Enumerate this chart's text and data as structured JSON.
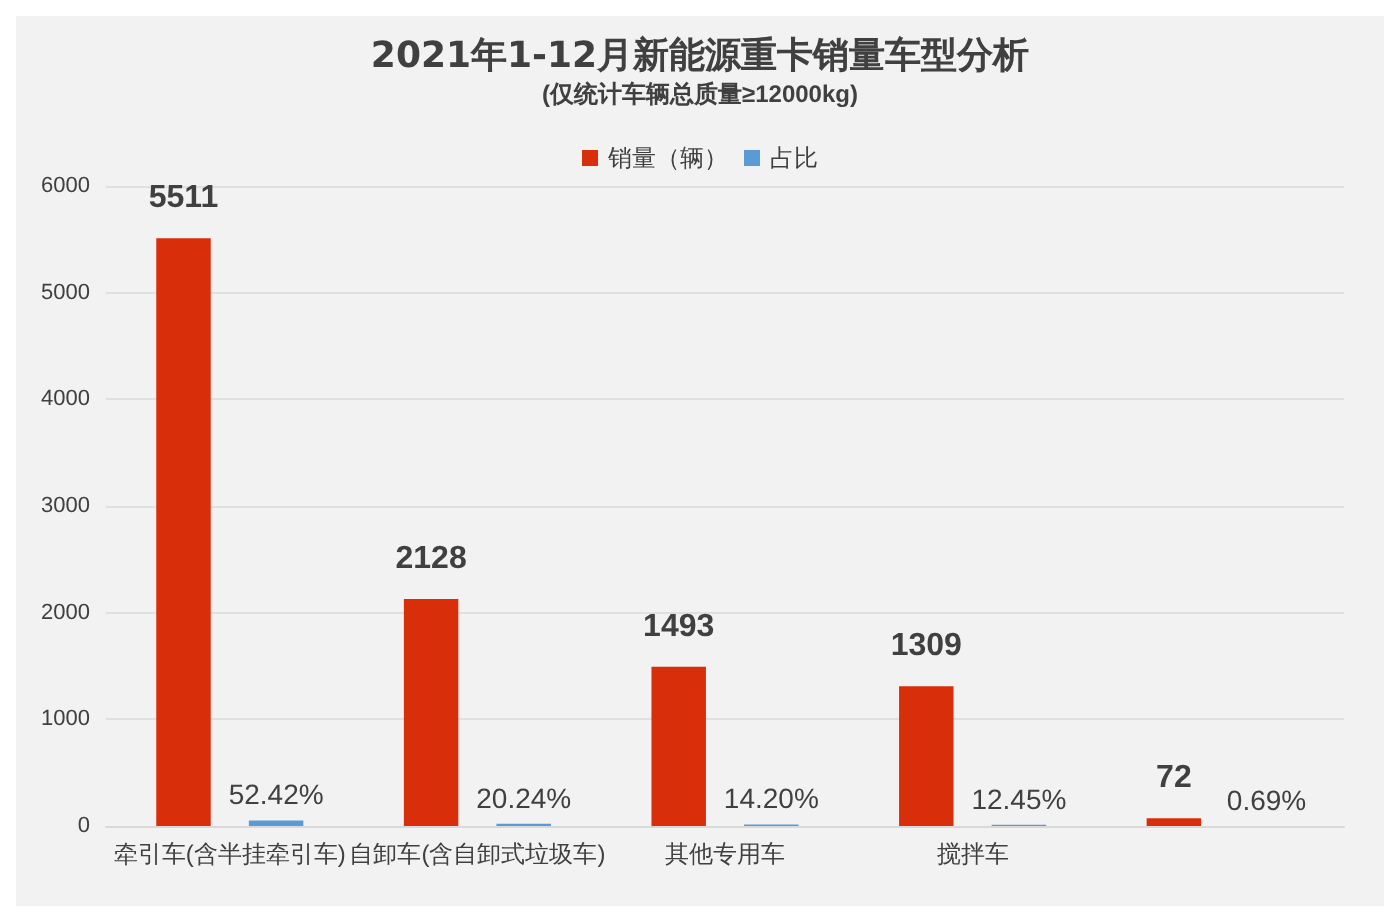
{
  "chart_data": {
    "type": "bar",
    "title": "2021年1-12月新能源重卡销量车型分析",
    "subtitle": "(仅统计车辆总质量≥12000kg)",
    "categories": [
      "牵引车(含半挂牵引车)",
      "自卸车(含自卸式垃圾车)",
      "其他专用车",
      "搅拌车",
      null
    ],
    "series": [
      {
        "name": "销量（辆）",
        "color": "#d92e0a",
        "values": [
          5511,
          2128,
          1493,
          1309,
          72
        ],
        "data_labels": true
      },
      {
        "name": "占比",
        "color": "#5b9bd5",
        "values": [
          52.42,
          20.24,
          14.2,
          12.45,
          0.69
        ],
        "value_labels": [
          "52.42%",
          "20.24%",
          "14.20%",
          "12.45%",
          "0.69%"
        ]
      }
    ],
    "ylim": [
      0,
      6000
    ],
    "yticks": [
      0,
      1000,
      2000,
      3000,
      4000,
      5000,
      6000
    ],
    "grid": "y",
    "legend": "top"
  }
}
